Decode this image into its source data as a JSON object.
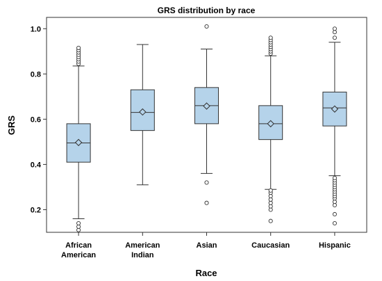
{
  "chart_data": {
    "type": "box",
    "title": "GRS distribution by race",
    "xlabel": "Race",
    "ylabel": "GRS",
    "ylim": [
      0.1,
      1.05
    ],
    "yticks": [
      "0.2",
      "0.4",
      "0.6",
      "0.8",
      "1.0"
    ],
    "ytick_values": [
      0.2,
      0.4,
      0.6,
      0.8,
      1.0
    ],
    "grid": false,
    "colors": {
      "box_fill": "#b5d3ea",
      "stroke": "#333333"
    },
    "categories": [
      {
        "name_lines": [
          "African",
          "American"
        ],
        "whisker_low": 0.16,
        "q1": 0.41,
        "median": 0.495,
        "q3": 0.58,
        "whisker_high": 0.835,
        "mean": 0.497,
        "outliers": [
          0.11,
          0.125,
          0.14,
          0.845,
          0.855,
          0.865,
          0.875,
          0.885,
          0.895,
          0.905,
          0.915
        ]
      },
      {
        "name_lines": [
          "American",
          "Indian"
        ],
        "whisker_low": 0.31,
        "q1": 0.55,
        "median": 0.63,
        "q3": 0.73,
        "whisker_high": 0.93,
        "mean": 0.632,
        "outliers": []
      },
      {
        "name_lines": [
          "Asian"
        ],
        "whisker_low": 0.36,
        "q1": 0.58,
        "median": 0.66,
        "q3": 0.74,
        "whisker_high": 0.91,
        "mean": 0.658,
        "outliers": [
          0.23,
          0.32,
          1.01
        ]
      },
      {
        "name_lines": [
          "Caucasian"
        ],
        "whisker_low": 0.29,
        "q1": 0.51,
        "median": 0.58,
        "q3": 0.66,
        "whisker_high": 0.88,
        "mean": 0.58,
        "outliers": [
          0.15,
          0.2,
          0.215,
          0.23,
          0.245,
          0.26,
          0.275,
          0.285,
          0.89,
          0.9,
          0.91,
          0.92,
          0.93,
          0.94,
          0.95,
          0.96
        ]
      },
      {
        "name_lines": [
          "Hispanic"
        ],
        "whisker_low": 0.35,
        "q1": 0.57,
        "median": 0.65,
        "q3": 0.72,
        "whisker_high": 0.94,
        "mean": 0.645,
        "outliers": [
          0.14,
          0.18,
          0.22,
          0.235,
          0.25,
          0.26,
          0.27,
          0.28,
          0.29,
          0.3,
          0.31,
          0.32,
          0.33,
          0.34,
          0.96,
          0.985,
          1.0
        ]
      }
    ]
  }
}
